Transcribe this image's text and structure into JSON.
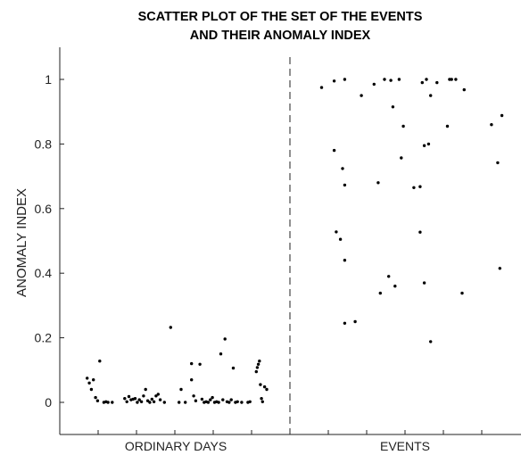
{
  "chart_data": {
    "type": "scatter",
    "title_lines": [
      "SCATTER PLOT OF THE SET OF THE EVENTS",
      "AND THEIR ANOMALY INDEX"
    ],
    "xlabel": "",
    "ylabel": "ANOMALY INDEX",
    "ylim": [
      -0.1,
      1.1
    ],
    "yticks": [
      0,
      0.2,
      0.4,
      0.6,
      0.8,
      1
    ],
    "ytick_labels": [
      "0",
      "0.2",
      "0.4",
      "0.6",
      "0.8",
      "1"
    ],
    "categories": [
      "ORDINARY DAYS",
      "EVENTS"
    ],
    "grid": false,
    "series": [
      {
        "category": "ORDINARY DAYS",
        "points": [
          [
            0.08,
            0.075
          ],
          [
            0.09,
            0.06
          ],
          [
            0.1,
            0.04
          ],
          [
            0.11,
            0.07
          ],
          [
            0.12,
            0.015
          ],
          [
            0.13,
            0.005
          ],
          [
            0.14,
            0.128
          ],
          [
            0.16,
            0.0
          ],
          [
            0.17,
            0.002
          ],
          [
            0.18,
            0.0
          ],
          [
            0.2,
            0.0
          ],
          [
            0.26,
            0.012
          ],
          [
            0.27,
            0.002
          ],
          [
            0.28,
            0.018
          ],
          [
            0.29,
            0.008
          ],
          [
            0.3,
            0.01
          ],
          [
            0.31,
            0.012
          ],
          [
            0.32,
            0.0
          ],
          [
            0.33,
            0.008
          ],
          [
            0.34,
            0.002
          ],
          [
            0.35,
            0.02
          ],
          [
            0.36,
            0.04
          ],
          [
            0.37,
            0.005
          ],
          [
            0.38,
            0.0
          ],
          [
            0.39,
            0.01
          ],
          [
            0.4,
            0.002
          ],
          [
            0.41,
            0.02
          ],
          [
            0.42,
            0.025
          ],
          [
            0.43,
            0.008
          ],
          [
            0.45,
            0.0
          ],
          [
            0.48,
            0.232
          ],
          [
            0.52,
            0.0
          ],
          [
            0.53,
            0.04
          ],
          [
            0.55,
            0.0
          ],
          [
            0.58,
            0.12
          ],
          [
            0.58,
            0.07
          ],
          [
            0.59,
            0.02
          ],
          [
            0.6,
            0.005
          ],
          [
            0.62,
            0.118
          ],
          [
            0.63,
            0.01
          ],
          [
            0.64,
            0.0
          ],
          [
            0.65,
            0.002
          ],
          [
            0.66,
            0.0
          ],
          [
            0.67,
            0.008
          ],
          [
            0.68,
            0.015
          ],
          [
            0.69,
            0.0
          ],
          [
            0.7,
            0.002
          ],
          [
            0.71,
            0.0
          ],
          [
            0.72,
            0.15
          ],
          [
            0.73,
            0.008
          ],
          [
            0.74,
            0.196
          ],
          [
            0.75,
            0.002
          ],
          [
            0.76,
            0.0
          ],
          [
            0.77,
            0.008
          ],
          [
            0.78,
            0.106
          ],
          [
            0.79,
            0.0
          ],
          [
            0.8,
            0.002
          ],
          [
            0.82,
            0.0
          ],
          [
            0.85,
            0.0
          ],
          [
            0.86,
            0.002
          ],
          [
            0.89,
            0.095
          ],
          [
            0.895,
            0.108
          ],
          [
            0.9,
            0.118
          ],
          [
            0.905,
            0.128
          ],
          [
            0.91,
            0.055
          ],
          [
            0.915,
            0.012
          ],
          [
            0.92,
            0.002
          ],
          [
            0.93,
            0.048
          ],
          [
            0.94,
            0.04
          ]
        ]
      },
      {
        "category": "EVENTS",
        "points": [
          [
            0.1,
            0.975
          ],
          [
            0.16,
            0.995
          ],
          [
            0.16,
            0.78
          ],
          [
            0.17,
            0.528
          ],
          [
            0.19,
            0.505
          ],
          [
            0.2,
            0.724
          ],
          [
            0.21,
            1.0
          ],
          [
            0.21,
            0.673
          ],
          [
            0.21,
            0.44
          ],
          [
            0.21,
            0.245
          ],
          [
            0.26,
            0.25
          ],
          [
            0.29,
            0.95
          ],
          [
            0.35,
            0.985
          ],
          [
            0.37,
            0.68
          ],
          [
            0.38,
            0.338
          ],
          [
            0.4,
            1.0
          ],
          [
            0.42,
            0.39
          ],
          [
            0.43,
            0.997
          ],
          [
            0.44,
            0.915
          ],
          [
            0.45,
            0.36
          ],
          [
            0.47,
            1.0
          ],
          [
            0.48,
            0.757
          ],
          [
            0.49,
            0.855
          ],
          [
            0.54,
            0.665
          ],
          [
            0.57,
            0.668
          ],
          [
            0.57,
            0.527
          ],
          [
            0.58,
            0.99
          ],
          [
            0.59,
            0.795
          ],
          [
            0.59,
            0.37
          ],
          [
            0.6,
            1.0
          ],
          [
            0.61,
            0.8
          ],
          [
            0.62,
            0.95
          ],
          [
            0.62,
            0.188
          ],
          [
            0.65,
            0.99
          ],
          [
            0.7,
            0.855
          ],
          [
            0.71,
            1.0
          ],
          [
            0.72,
            1.0
          ],
          [
            0.74,
            1.0
          ],
          [
            0.77,
            0.338
          ],
          [
            0.78,
            0.968
          ],
          [
            0.91,
            0.86
          ],
          [
            0.94,
            0.742
          ],
          [
            0.95,
            0.415
          ],
          [
            0.96,
            0.888
          ]
        ]
      }
    ]
  }
}
